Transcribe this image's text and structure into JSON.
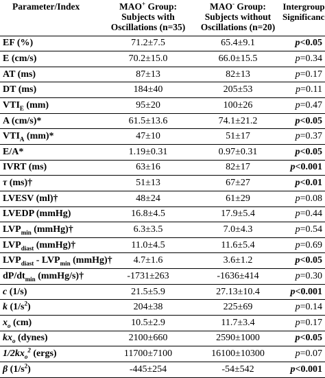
{
  "headers": {
    "parameter": "Parameter/Index",
    "group_pos_line1": "MAO",
    "group_pos_sup": "+",
    "group_pos_line1_rest": " Group:",
    "group_pos_line2": "Subjects with",
    "group_pos_line3": "Oscillations (n=35)",
    "group_neg_line1": "MAO",
    "group_neg_sup": "-",
    "group_neg_line1_rest": " Group:",
    "group_neg_line2": "Subjects without",
    "group_neg_line3": "Oscillations (n=20)",
    "significance_line1": "Intergroup",
    "significance_line2": "Significance"
  },
  "rows": [
    {
      "param": "EF (%)",
      "pos": "71.2±7.5",
      "neg": "65.4±9.1",
      "p": "p<0.05",
      "sig": true
    },
    {
      "param": "E (cm/s)",
      "pos": "70.2±15.0",
      "neg": "66.0±15.5",
      "p": "p=0.34",
      "sig": false
    },
    {
      "param": "AT (ms)",
      "pos": "87±13",
      "neg": "82±13",
      "p": "p=0.17",
      "sig": false
    },
    {
      "param": "DT (ms)",
      "pos": "184±40",
      "neg": "205±53",
      "p": "p=0.11",
      "sig": false
    },
    {
      "param": "VTI_E (mm)",
      "pos": "95±20",
      "neg": "100±26",
      "p": "p=0.47",
      "sig": false
    },
    {
      "param": "A (cm/s)*",
      "pos": "61.5±13.6",
      "neg": "74.1±21.2",
      "p": "p<0.05",
      "sig": true
    },
    {
      "param": "VTI_A (mm)*",
      "pos": "47±10",
      "neg": "51±17",
      "p": "p=0.37",
      "sig": false
    },
    {
      "param": "E/A*",
      "pos": "1.19±0.31",
      "neg": "0.97±0.31",
      "p": "p<0.05",
      "sig": true
    },
    {
      "param": "IVRT (ms)",
      "pos": "63±16",
      "neg": "82±17",
      "p": "p<0.001",
      "sig": true
    },
    {
      "param": "τ (ms)†",
      "pos": "51±13",
      "neg": "67±27",
      "p": "p<0.01",
      "sig": true
    },
    {
      "param": "LVESV (ml)†",
      "pos": "48±24",
      "neg": "61±29",
      "p": "p=0.08",
      "sig": false
    },
    {
      "param": "LVEDP (mmHg)",
      "pos": "16.8±4.5",
      "neg": "17.9±5.4",
      "p": "p=0.44",
      "sig": false
    },
    {
      "param": "LVP_min (mmHg)†",
      "pos": "6.3±3.5",
      "neg": "7.0±4.3",
      "p": "p=0.54",
      "sig": false
    },
    {
      "param": "LVP_diast (mmHg)†",
      "pos": "11.0±4.5",
      "neg": "11.6±5.4",
      "p": "p=0.69",
      "sig": false
    },
    {
      "param": "LVP_diast - LVP_min (mmHg)†",
      "pos": "4.7±1.6",
      "neg": "3.6±1.2",
      "p": "p<0.05",
      "sig": true
    },
    {
      "param": "dP/dt_min (mmHg/s)†",
      "pos": "-1731±263",
      "neg": "-1636±414",
      "p": "p=0.30",
      "sig": false
    },
    {
      "param": "c (1/s)",
      "pos": "21.5±5.9",
      "neg": "27.13±10.4",
      "p": "p<0.001",
      "sig": true
    },
    {
      "param": "k (1/s^2)",
      "pos": "204±38",
      "neg": "225±69",
      "p": "p=0.14",
      "sig": false
    },
    {
      "param": "x_o (cm)",
      "pos": "10.5±2.9",
      "neg": "11.7±3.4",
      "p": "p=0.17",
      "sig": false
    },
    {
      "param": "kx_o (dynes)",
      "pos": "2100±660",
      "neg": "2590±1000",
      "p": "p<0.05",
      "sig": true
    },
    {
      "param": "1/2kx_o^2 (ergs)",
      "pos": "11700±7100",
      "neg": "16100±10300",
      "p": "p=0.07",
      "sig": false
    },
    {
      "param": "β (1/s^2)",
      "pos": "-445±254",
      "neg": "-54±542",
      "p": "p<0.001",
      "sig": true
    }
  ]
}
